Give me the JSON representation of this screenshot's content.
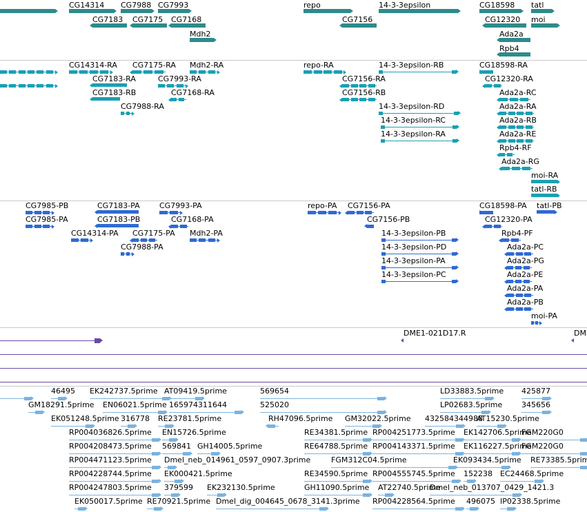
{
  "colors": {
    "gene": "#2e8b8b",
    "mrna": "#1aa0b4",
    "protein": "#2f6ad3",
    "clone": "#6b48a8",
    "est": "#7bb3de",
    "separator": "#c8c8c8"
  },
  "tracks": [
    {
      "name": "gene-track",
      "features": [
        {
          "label": "",
          "kind": "gene",
          "dir": "right"
        },
        {
          "label": "CG14314",
          "kind": "gene",
          "dir": "right"
        },
        {
          "label": "CG7988",
          "kind": "gene",
          "dir": "right"
        },
        {
          "label": "CG7993",
          "kind": "gene",
          "dir": "right"
        },
        {
          "label": "CG7183",
          "kind": "gene",
          "dir": "left"
        },
        {
          "label": "CG7175",
          "kind": "gene",
          "dir": "left"
        },
        {
          "label": "CG7168",
          "kind": "gene",
          "dir": "left"
        },
        {
          "label": "Mdh2",
          "kind": "gene",
          "dir": "right"
        },
        {
          "label": "repo",
          "kind": "gene",
          "dir": "right"
        },
        {
          "label": "14-3-3epsilon",
          "kind": "gene",
          "dir": "right"
        },
        {
          "label": "CG7156",
          "kind": "gene",
          "dir": "left"
        },
        {
          "label": "CG18598",
          "kind": "gene",
          "dir": "right"
        },
        {
          "label": "tatl",
          "kind": "gene",
          "dir": "right"
        },
        {
          "label": "CG12320",
          "kind": "gene",
          "dir": "left"
        },
        {
          "label": "moi",
          "kind": "gene",
          "dir": "right"
        },
        {
          "label": "Ada2a",
          "kind": "gene",
          "dir": "left"
        },
        {
          "label": "Rpb4",
          "kind": "gene",
          "dir": "left"
        }
      ]
    },
    {
      "name": "transcript-track",
      "features": [
        {
          "label": "",
          "kind": "mrna",
          "dir": "right"
        },
        {
          "label": "",
          "kind": "mrna",
          "dir": "right"
        },
        {
          "label": "CG14314-RA",
          "kind": "mrna",
          "dir": "right"
        },
        {
          "label": "CG7175-RA",
          "kind": "mrna",
          "dir": "left"
        },
        {
          "label": "Mdh2-RA",
          "kind": "mrna",
          "dir": "right"
        },
        {
          "label": "CG7183-RA",
          "kind": "mrna",
          "dir": "left"
        },
        {
          "label": "CG7993-RA",
          "kind": "mrna",
          "dir": "right"
        },
        {
          "label": "CG7183-RB",
          "kind": "mrna",
          "dir": "left"
        },
        {
          "label": "CG7168-RA",
          "kind": "mrna",
          "dir": "left"
        },
        {
          "label": "CG7988-RA",
          "kind": "mrna",
          "dir": "right"
        },
        {
          "label": "repo-RA",
          "kind": "mrna",
          "dir": "right"
        },
        {
          "label": "14-3-3epsilon-RB",
          "kind": "mrna",
          "dir": "right"
        },
        {
          "label": "CG7156-RA",
          "kind": "mrna",
          "dir": "left"
        },
        {
          "label": "CG7156-RB",
          "kind": "mrna",
          "dir": "left"
        },
        {
          "label": "14-3-3epsilon-RD",
          "kind": "mrna",
          "dir": "right"
        },
        {
          "label": "14-3-3epsilon-RC",
          "kind": "mrna",
          "dir": "right"
        },
        {
          "label": "14-3-3epsilon-RA",
          "kind": "mrna",
          "dir": "right"
        },
        {
          "label": "CG18598-RA",
          "kind": "mrna",
          "dir": "right"
        },
        {
          "label": "CG12320-RA",
          "kind": "mrna",
          "dir": "left"
        },
        {
          "label": "Ada2a-RC",
          "kind": "mrna",
          "dir": "left"
        },
        {
          "label": "Ada2a-RA",
          "kind": "mrna",
          "dir": "left"
        },
        {
          "label": "Ada2a-RB",
          "kind": "mrna",
          "dir": "left"
        },
        {
          "label": "Ada2a-RE",
          "kind": "mrna",
          "dir": "left"
        },
        {
          "label": "Rpb4-RF",
          "kind": "mrna",
          "dir": "left"
        },
        {
          "label": "Ada2a-RG",
          "kind": "mrna",
          "dir": "left"
        },
        {
          "label": "moi-RA",
          "kind": "mrna",
          "dir": "right"
        },
        {
          "label": "tatl-RB",
          "kind": "mrna",
          "dir": "right"
        }
      ]
    },
    {
      "name": "protein-track",
      "features": [
        {
          "label": "CG7985-PB",
          "kind": "protein",
          "dir": "right"
        },
        {
          "label": "CG7985-PA",
          "kind": "protein",
          "dir": "right"
        },
        {
          "label": "CG7183-PA",
          "kind": "protein",
          "dir": "left"
        },
        {
          "label": "CG7183-PB",
          "kind": "protein",
          "dir": "left"
        },
        {
          "label": "CG7993-PA",
          "kind": "protein",
          "dir": "right"
        },
        {
          "label": "CG7168-PA",
          "kind": "protein",
          "dir": "left"
        },
        {
          "label": "CG14314-PA",
          "kind": "protein",
          "dir": "right"
        },
        {
          "label": "CG7175-PA",
          "kind": "protein",
          "dir": "left"
        },
        {
          "label": "Mdh2-PA",
          "kind": "protein",
          "dir": "right"
        },
        {
          "label": "CG7988-PA",
          "kind": "protein",
          "dir": "right"
        },
        {
          "label": "repo-PA",
          "kind": "protein",
          "dir": "right"
        },
        {
          "label": "CG7156-PA",
          "kind": "protein",
          "dir": "left"
        },
        {
          "label": "CG7156-PB",
          "kind": "protein",
          "dir": "left"
        },
        {
          "label": "14-3-3epsilon-PB",
          "kind": "protein",
          "dir": "right"
        },
        {
          "label": "14-3-3epsilon-PD",
          "kind": "protein",
          "dir": "right"
        },
        {
          "label": "14-3-3epsilon-PA",
          "kind": "protein",
          "dir": "right"
        },
        {
          "label": "14-3-3epsilon-PC",
          "kind": "protein",
          "dir": "right"
        },
        {
          "label": "CG18598-PA",
          "kind": "protein",
          "dir": "right"
        },
        {
          "label": "tatl-PB",
          "kind": "protein",
          "dir": "right"
        },
        {
          "label": "CG12320-PA",
          "kind": "protein",
          "dir": "left"
        },
        {
          "label": "Rpb4-PF",
          "kind": "protein",
          "dir": "left"
        },
        {
          "label": "Ada2a-PC",
          "kind": "protein",
          "dir": "left"
        },
        {
          "label": "Ada2a-PG",
          "kind": "protein",
          "dir": "left"
        },
        {
          "label": "Ada2a-PE",
          "kind": "protein",
          "dir": "left"
        },
        {
          "label": "Ada2a-PA",
          "kind": "protein",
          "dir": "left"
        },
        {
          "label": "Ada2a-PB",
          "kind": "protein",
          "dir": "left"
        },
        {
          "label": "moi-PA",
          "kind": "protein",
          "dir": "right"
        }
      ]
    },
    {
      "name": "clone-track",
      "features": [
        {
          "label": "",
          "kind": "clone",
          "dir": "right"
        },
        {
          "label": "DME1-021D17.R",
          "kind": "clone",
          "dir": "left"
        },
        {
          "label": "DM",
          "kind": "clone",
          "dir": "left"
        },
        {
          "label": "",
          "kind": "clone",
          "dir": "none"
        },
        {
          "label": "",
          "kind": "clone",
          "dir": "none"
        },
        {
          "label": "",
          "kind": "clone",
          "dir": "none"
        }
      ]
    },
    {
      "name": "est-track",
      "features": [
        {
          "label": "",
          "kind": "est",
          "dir": "right"
        },
        {
          "label": "46495",
          "kind": "est",
          "dir": "right"
        },
        {
          "label": "EK242737.5prime",
          "kind": "est",
          "dir": "right"
        },
        {
          "label": "AT09419.5prime",
          "kind": "est",
          "dir": "right"
        },
        {
          "label": "569654",
          "kind": "est",
          "dir": "right"
        },
        {
          "label": "LD33883.5prime",
          "kind": "est",
          "dir": "right"
        },
        {
          "label": "425877",
          "kind": "est",
          "dir": "right"
        },
        {
          "label": "GM18291.5prime",
          "kind": "est",
          "dir": "right"
        },
        {
          "label": "EN06021.5prime",
          "kind": "est",
          "dir": "right"
        },
        {
          "label": "165974311644",
          "kind": "est",
          "dir": "right"
        },
        {
          "label": "525020",
          "kind": "est",
          "dir": "right"
        },
        {
          "label": "LP02683.5prime",
          "kind": "est",
          "dir": "right"
        },
        {
          "label": "345656",
          "kind": "est",
          "dir": "right"
        },
        {
          "label": "EK051248.5prime",
          "kind": "est",
          "dir": "right"
        },
        {
          "label": "316778",
          "kind": "est",
          "dir": "right"
        },
        {
          "label": "RE23781.5prime",
          "kind": "est",
          "dir": "right"
        },
        {
          "label": "RH47096.5prime",
          "kind": "est",
          "dir": "left"
        },
        {
          "label": "GM32022.5prime",
          "kind": "est",
          "dir": "right"
        },
        {
          "label": "432584344988",
          "kind": "est",
          "dir": "right"
        },
        {
          "label": "AT15230.5prime",
          "kind": "est",
          "dir": "right"
        },
        {
          "label": "RP004036826.5prime",
          "kind": "est",
          "dir": "right"
        },
        {
          "label": "EN15726.5prime",
          "kind": "est",
          "dir": "right"
        },
        {
          "label": "RE34381.5prime",
          "kind": "est",
          "dir": "right"
        },
        {
          "label": "RP004251773.5prime",
          "kind": "est",
          "dir": "right"
        },
        {
          "label": "EK142706.5prime",
          "kind": "est",
          "dir": "right"
        },
        {
          "label": "FGM220G0",
          "kind": "est",
          "dir": "right"
        },
        {
          "label": "RP004208473.5prime",
          "kind": "est",
          "dir": "right"
        },
        {
          "label": "569841",
          "kind": "est",
          "dir": "right"
        },
        {
          "label": "GH14005.5prime",
          "kind": "est",
          "dir": "right"
        },
        {
          "label": "RE64788.5prime",
          "kind": "est",
          "dir": "right"
        },
        {
          "label": "RP004143371.5prime",
          "kind": "est",
          "dir": "right"
        },
        {
          "label": "EK116227.5prime",
          "kind": "est",
          "dir": "right"
        },
        {
          "label": "FGM220G0",
          "kind": "est",
          "dir": "right"
        },
        {
          "label": "RP004471123.5prime",
          "kind": "est",
          "dir": "right"
        },
        {
          "label": "Dmel_neb_014961_0597_0907.3prime",
          "kind": "est",
          "dir": "right"
        },
        {
          "label": "FGM312C04.5prime",
          "kind": "est",
          "dir": "right"
        },
        {
          "label": "EK093434.5prime",
          "kind": "est",
          "dir": "right"
        },
        {
          "label": "RE73385.5prime",
          "kind": "est",
          "dir": "right"
        },
        {
          "label": "RP004228744.5prime",
          "kind": "est",
          "dir": "right"
        },
        {
          "label": "EK000421.5prime",
          "kind": "est",
          "dir": "right"
        },
        {
          "label": "RE34590.5prime",
          "kind": "est",
          "dir": "right"
        },
        {
          "label": "RP004555745.5prime",
          "kind": "est",
          "dir": "right"
        },
        {
          "label": "152238",
          "kind": "est",
          "dir": "right"
        },
        {
          "label": "EC24468.5prime",
          "kind": "est",
          "dir": "right"
        },
        {
          "label": "RP004247803.5prime",
          "kind": "est",
          "dir": "right"
        },
        {
          "label": "379599",
          "kind": "est",
          "dir": "right"
        },
        {
          "label": "EK232130.5prime",
          "kind": "est",
          "dir": "right"
        },
        {
          "label": "GH11090.5prime",
          "kind": "est",
          "dir": "right"
        },
        {
          "label": "AT22740.5prime",
          "kind": "est",
          "dir": "right"
        },
        {
          "label": "Dmel_neb_013707_0429_1421.3",
          "kind": "est",
          "dir": "right"
        },
        {
          "label": "EK050017.5prime",
          "kind": "est",
          "dir": "right"
        },
        {
          "label": "RE70921.5prime",
          "kind": "est",
          "dir": "right"
        },
        {
          "label": "Dmel_dig_004645_0678_3141.3prime",
          "kind": "est",
          "dir": "right"
        },
        {
          "label": "RP004228564.5prime",
          "kind": "est",
          "dir": "right"
        },
        {
          "label": "496075",
          "kind": "est",
          "dir": "right"
        },
        {
          "label": "IP02338.5prime",
          "kind": "est",
          "dir": "right"
        }
      ]
    }
  ]
}
